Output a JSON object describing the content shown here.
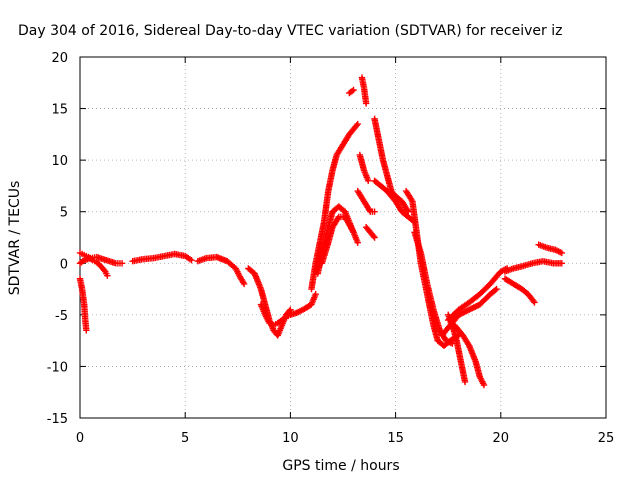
{
  "chart_data": {
    "type": "scatter",
    "title": "Day 304 of 2016, Sidereal Day-to-day VTEC variation (SDTVAR) for receiver iz",
    "xlabel": "GPS time / hours",
    "ylabel": "SDTVAR / TECUs",
    "xlim": [
      0,
      25
    ],
    "ylim": [
      -15,
      20
    ],
    "xticks": [
      "0",
      "5",
      "10",
      "15",
      "20",
      "25"
    ],
    "yticks": [
      "-15",
      "-10",
      "-5",
      "0",
      "5",
      "10",
      "15",
      "20"
    ],
    "grid": true,
    "legend": "none",
    "marker": "plus",
    "color": "#ff0000",
    "series": [
      {
        "values": [
          [
            0.0,
            -1.5
          ],
          [
            0.1,
            -2.5
          ],
          [
            0.2,
            -4
          ],
          [
            0.25,
            -5.5
          ],
          [
            0.3,
            -6.5
          ]
        ]
      },
      {
        "values": [
          [
            0.0,
            1
          ],
          [
            0.2,
            0.8
          ],
          [
            0.4,
            0.6
          ],
          [
            0.6,
            0.3
          ],
          [
            0.8,
            0.1
          ],
          [
            1.0,
            -0.3
          ],
          [
            1.2,
            -0.8
          ],
          [
            1.3,
            -1.2
          ]
        ]
      },
      {
        "values": [
          [
            0.0,
            0
          ],
          [
            0.2,
            0.3
          ],
          [
            0.5,
            0.5
          ],
          [
            0.8,
            0.6
          ],
          [
            1.1,
            0.4
          ],
          [
            1.4,
            0.2
          ],
          [
            1.7,
            0
          ],
          [
            2.0,
            0
          ]
        ]
      },
      {
        "values": [
          [
            2.5,
            0.2
          ],
          [
            3.0,
            0.4
          ],
          [
            3.5,
            0.5
          ],
          [
            4.0,
            0.7
          ],
          [
            4.5,
            0.9
          ],
          [
            5.0,
            0.7
          ],
          [
            5.3,
            0.3
          ]
        ]
      },
      {
        "values": [
          [
            5.6,
            0.2
          ],
          [
            6.0,
            0.5
          ],
          [
            6.5,
            0.6
          ],
          [
            7.0,
            0.2
          ],
          [
            7.4,
            -0.5
          ],
          [
            7.6,
            -1.3
          ],
          [
            7.8,
            -2.0
          ]
        ]
      },
      {
        "values": [
          [
            8.0,
            -0.5
          ],
          [
            8.3,
            -1
          ],
          [
            8.6,
            -2.5
          ],
          [
            8.8,
            -4
          ],
          [
            9.0,
            -5.5
          ],
          [
            9.2,
            -6.5
          ],
          [
            9.4,
            -7
          ],
          [
            9.6,
            -6
          ],
          [
            9.8,
            -5
          ],
          [
            10.0,
            -4.5
          ]
        ]
      },
      {
        "values": [
          [
            8.6,
            -4
          ],
          [
            8.8,
            -5
          ],
          [
            9.0,
            -5.8
          ],
          [
            9.2,
            -6
          ],
          [
            9.4,
            -5.8
          ],
          [
            9.6,
            -5.5
          ],
          [
            9.8,
            -5.2
          ],
          [
            10.0,
            -5
          ],
          [
            10.3,
            -4.8
          ],
          [
            10.6,
            -4.5
          ],
          [
            11.0,
            -4
          ],
          [
            11.2,
            -3
          ]
        ]
      },
      {
        "values": [
          [
            11.0,
            -2.5
          ],
          [
            11.2,
            0
          ],
          [
            11.4,
            2
          ],
          [
            11.6,
            4
          ],
          [
            11.8,
            7
          ],
          [
            12.0,
            9
          ],
          [
            12.2,
            10.5
          ],
          [
            12.5,
            11.5
          ],
          [
            12.8,
            12.5
          ],
          [
            13.0,
            13
          ],
          [
            13.2,
            13.5
          ]
        ]
      },
      {
        "values": [
          [
            11.3,
            -1
          ],
          [
            11.5,
            1
          ],
          [
            11.8,
            3.5
          ],
          [
            12.0,
            5
          ],
          [
            12.3,
            5.5
          ],
          [
            12.6,
            5
          ],
          [
            12.8,
            4
          ],
          [
            13.0,
            3
          ]
        ]
      },
      {
        "values": [
          [
            11.5,
            0
          ],
          [
            11.8,
            2
          ],
          [
            12.0,
            3.5
          ],
          [
            12.3,
            4.5
          ],
          [
            12.6,
            4.5
          ],
          [
            13.0,
            3
          ],
          [
            13.2,
            2
          ]
        ]
      },
      {
        "values": [
          [
            12.8,
            16.5
          ],
          [
            13.0,
            16.8
          ]
        ]
      },
      {
        "values": [
          [
            13.4,
            18
          ],
          [
            13.5,
            17
          ],
          [
            13.6,
            15.5
          ]
        ]
      },
      {
        "values": [
          [
            13.3,
            10.5
          ],
          [
            13.5,
            9
          ],
          [
            13.7,
            8
          ]
        ]
      },
      {
        "values": [
          [
            13.2,
            7
          ],
          [
            13.5,
            6
          ],
          [
            13.8,
            5
          ],
          [
            14.0,
            5
          ]
        ]
      },
      {
        "values": [
          [
            14.0,
            14
          ],
          [
            14.2,
            12
          ],
          [
            14.4,
            10
          ],
          [
            14.6,
            8.5
          ],
          [
            14.8,
            7
          ],
          [
            15.0,
            6.5
          ],
          [
            15.3,
            6
          ],
          [
            15.6,
            5
          ]
        ]
      },
      {
        "values": [
          [
            13.6,
            3.5
          ],
          [
            13.8,
            3
          ],
          [
            14.0,
            2.5
          ]
        ]
      },
      {
        "values": [
          [
            14.0,
            8
          ],
          [
            14.3,
            7.5
          ],
          [
            14.6,
            7
          ],
          [
            15.0,
            6
          ],
          [
            15.3,
            5
          ],
          [
            15.6,
            4.5
          ],
          [
            15.9,
            4
          ]
        ]
      },
      {
        "values": [
          [
            15.5,
            7
          ],
          [
            15.8,
            6
          ],
          [
            16.0,
            3
          ],
          [
            16.2,
            0
          ],
          [
            16.5,
            -3
          ],
          [
            16.8,
            -6
          ],
          [
            17.0,
            -7.5
          ],
          [
            17.3,
            -8
          ],
          [
            17.6,
            -7.5
          ],
          [
            18.0,
            -7
          ]
        ]
      },
      {
        "values": [
          [
            15.9,
            3
          ],
          [
            16.2,
            1
          ],
          [
            16.5,
            -2
          ],
          [
            16.8,
            -4.5
          ],
          [
            17.1,
            -6.5
          ],
          [
            17.4,
            -7.5
          ],
          [
            17.7,
            -7.8
          ]
        ]
      },
      {
        "values": [
          [
            17.5,
            -5
          ],
          [
            17.7,
            -6
          ],
          [
            17.9,
            -7.5
          ],
          [
            18.1,
            -9.5
          ],
          [
            18.3,
            -11.5
          ]
        ]
      },
      {
        "values": [
          [
            17.8,
            -6
          ],
          [
            18.2,
            -7
          ],
          [
            18.5,
            -8
          ],
          [
            18.8,
            -9.5
          ],
          [
            19.0,
            -11
          ],
          [
            19.2,
            -11.8
          ]
        ]
      },
      {
        "values": [
          [
            17.5,
            -5.5
          ],
          [
            18.0,
            -4.5
          ],
          [
            18.5,
            -3.8
          ],
          [
            19.0,
            -3
          ],
          [
            19.5,
            -2
          ],
          [
            20.0,
            -0.8
          ],
          [
            20.3,
            -0.5
          ]
        ]
      },
      {
        "values": [
          [
            17.2,
            -7
          ],
          [
            17.6,
            -6
          ],
          [
            18.0,
            -5
          ],
          [
            18.5,
            -4.5
          ],
          [
            19.0,
            -4
          ],
          [
            19.5,
            -3
          ],
          [
            19.8,
            -2.5
          ]
        ]
      },
      {
        "values": [
          [
            20.2,
            -1.5
          ],
          [
            20.6,
            -2
          ],
          [
            21.0,
            -2.5
          ],
          [
            21.3,
            -3
          ],
          [
            21.6,
            -3.8
          ]
        ]
      },
      {
        "values": [
          [
            20.2,
            -0.8
          ],
          [
            20.6,
            -0.5
          ],
          [
            21.0,
            -0.3
          ],
          [
            21.5,
            0
          ],
          [
            22.0,
            0.2
          ],
          [
            22.5,
            0
          ],
          [
            22.9,
            0
          ]
        ]
      },
      {
        "values": [
          [
            21.8,
            1.8
          ],
          [
            22.2,
            1.5
          ],
          [
            22.6,
            1.3
          ],
          [
            22.9,
            1
          ]
        ]
      }
    ]
  }
}
